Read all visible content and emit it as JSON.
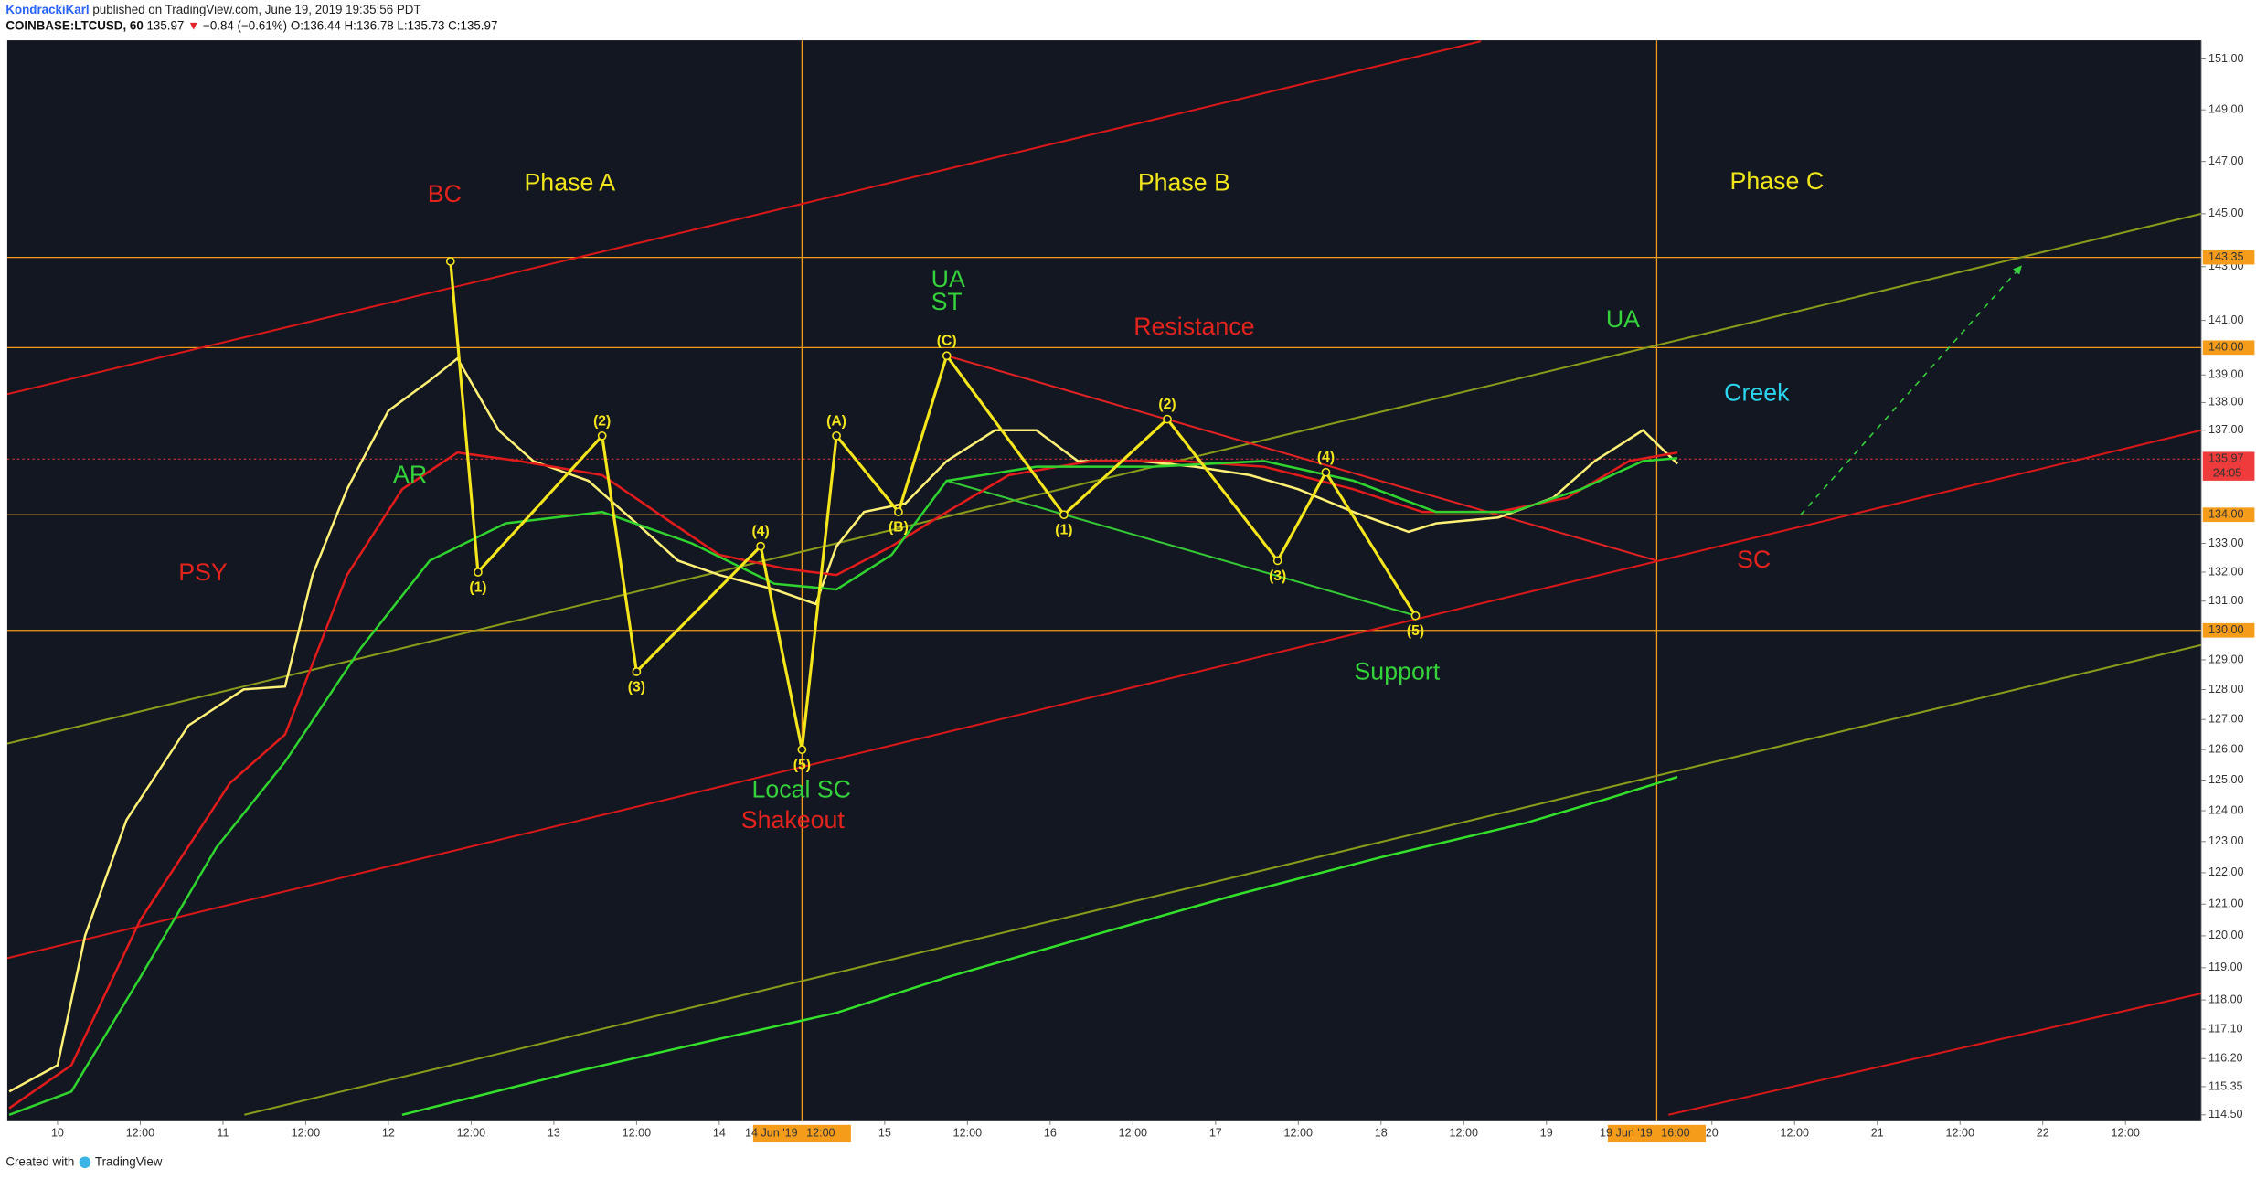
{
  "header": {
    "author": "KondrackiKarl",
    "published": "published on TradingView.com, June 19, 2019 19:35:56 PDT",
    "symbol": "COINBASE:LTCUSD, 60",
    "price": "135.97",
    "arrow": "▼",
    "change": "−0.84 (−0.61%)",
    "ohlc": "O:136.44 H:136.78 L:135.73 C:135.97"
  },
  "footer": {
    "created": "Created with",
    "brand": "TradingView"
  },
  "chart_data": {
    "type": "line",
    "log": true,
    "background": "#131722",
    "xlim": [
      -7.3,
      311
    ],
    "ylim": [
      114.5,
      151
    ],
    "xticks": [
      {
        "value": 0,
        "label": "10"
      },
      {
        "value": 12,
        "label": "12:00"
      },
      {
        "value": 24,
        "label": "11"
      },
      {
        "value": 36,
        "label": "12:00"
      },
      {
        "value": 48,
        "label": "12"
      },
      {
        "value": 60,
        "label": "12:00"
      },
      {
        "value": 72,
        "label": "13"
      },
      {
        "value": 84,
        "label": "12:00"
      },
      {
        "value": 96,
        "label": "14"
      },
      {
        "value": 120,
        "label": "15"
      },
      {
        "value": 132,
        "label": "12:00"
      },
      {
        "value": 144,
        "label": "16"
      },
      {
        "value": 156,
        "label": "12:00"
      },
      {
        "value": 168,
        "label": "17"
      },
      {
        "value": 180,
        "label": "12:00"
      },
      {
        "value": 192,
        "label": "18"
      },
      {
        "value": 204,
        "label": "12:00"
      },
      {
        "value": 216,
        "label": "19"
      },
      {
        "value": 240,
        "label": "20"
      },
      {
        "value": 252,
        "label": "12:00"
      },
      {
        "value": 264,
        "label": "21"
      },
      {
        "value": 276,
        "label": "12:00"
      },
      {
        "value": 288,
        "label": "22"
      },
      {
        "value": 300,
        "label": "12:00"
      }
    ],
    "yticks": [
      {
        "value": 151,
        "label": "151.00"
      },
      {
        "value": 149,
        "label": "149.00"
      },
      {
        "value": 147,
        "label": "147.00"
      },
      {
        "value": 145,
        "label": "145.00"
      },
      {
        "value": 143,
        "label": "143.00"
      },
      {
        "value": 141,
        "label": "141.00"
      },
      {
        "value": 139,
        "label": "139.00"
      },
      {
        "value": 138,
        "label": "138.00"
      },
      {
        "value": 137,
        "label": "137.00"
      },
      {
        "value": 133,
        "label": "133.00"
      },
      {
        "value": 132,
        "label": "132.00"
      },
      {
        "value": 131,
        "label": "131.00"
      },
      {
        "value": 129,
        "label": "129.00"
      },
      {
        "value": 128,
        "label": "128.00"
      },
      {
        "value": 127,
        "label": "127.00"
      },
      {
        "value": 126,
        "label": "126.00"
      },
      {
        "value": 125,
        "label": "125.00"
      },
      {
        "value": 124,
        "label": "124.00"
      },
      {
        "value": 123,
        "label": "123.00"
      },
      {
        "value": 122,
        "label": "122.00"
      },
      {
        "value": 121,
        "label": "121.00"
      },
      {
        "value": 120,
        "label": "120.00"
      },
      {
        "value": 119,
        "label": "119.00"
      },
      {
        "value": 118,
        "label": "118.00"
      },
      {
        "value": 117.1,
        "label": "117.10"
      },
      {
        "value": 116.2,
        "label": "116.20"
      },
      {
        "value": 115.35,
        "label": "115.35"
      },
      {
        "value": 114.5,
        "label": "114.50"
      }
    ],
    "series": [
      {
        "color": "#fff176",
        "x": [
          -7,
          0,
          4,
          10,
          19,
          27,
          33,
          37,
          42,
          48,
          54,
          58,
          64,
          69,
          77,
          84,
          90,
          96,
          104,
          110,
          113,
          117,
          123,
          129,
          136,
          142,
          148,
          157,
          165,
          173,
          180,
          188,
          196,
          200,
          209,
          217,
          223,
          230,
          235
        ],
        "values": [
          115.2,
          116.0,
          120.0,
          123.7,
          126.8,
          128.0,
          128.1,
          131.9,
          134.9,
          137.7,
          138.8,
          139.6,
          137.0,
          135.9,
          135.2,
          133.7,
          132.4,
          131.9,
          131.4,
          130.9,
          132.9,
          134.1,
          134.4,
          135.9,
          137.0,
          137.0,
          135.9,
          135.9,
          135.7,
          135.4,
          134.9,
          134.1,
          133.4,
          133.7,
          133.9,
          134.6,
          135.9,
          137.0,
          135.8
        ]
      },
      {
        "color": "#e21b1b",
        "x": [
          -7,
          2,
          12,
          25,
          33,
          42,
          50,
          58,
          67,
          79,
          88,
          96,
          106,
          113,
          121,
          129,
          138,
          150,
          163,
          175,
          188,
          198,
          209,
          219,
          228,
          235
        ],
        "values": [
          114.7,
          116.0,
          120.5,
          124.9,
          126.5,
          131.9,
          134.9,
          136.2,
          135.9,
          135.4,
          133.9,
          132.6,
          132.1,
          131.9,
          132.9,
          134.1,
          135.4,
          135.9,
          135.9,
          135.7,
          134.9,
          134.1,
          134.1,
          134.6,
          135.9,
          136.2
        ]
      },
      {
        "color": "#2fd42f",
        "x": [
          -7,
          2,
          12,
          23,
          33,
          44,
          54,
          65,
          79,
          92,
          104,
          113,
          121,
          129,
          142,
          159,
          175,
          188,
          200,
          211,
          221,
          230,
          235
        ],
        "values": [
          114.5,
          115.2,
          118.7,
          122.8,
          125.6,
          129.4,
          132.4,
          133.7,
          134.1,
          133.0,
          131.6,
          131.4,
          132.6,
          135.2,
          135.7,
          135.7,
          135.9,
          135.2,
          134.1,
          134.1,
          134.9,
          135.9,
          136.0
        ]
      },
      {
        "color": "#33e02a",
        "x": [
          50,
          75,
          96,
          113,
          129,
          150,
          171,
          192,
          213,
          225,
          235
        ],
        "values": [
          114.5,
          115.8,
          116.8,
          117.6,
          118.7,
          120.0,
          121.3,
          122.5,
          123.6,
          124.4,
          125.1
        ]
      }
    ],
    "waves": {
      "color": "#f5e61c",
      "x": [
        57,
        61,
        79,
        84,
        102,
        108,
        113,
        122,
        129,
        146,
        161,
        177,
        184,
        197
      ],
      "values": [
        143.2,
        132.0,
        136.8,
        128.6,
        132.9,
        126.0,
        136.8,
        134.1,
        139.7,
        134.0,
        137.4,
        132.4,
        135.5,
        130.5
      ],
      "labels": [
        null,
        "(1)",
        "(2)",
        "(3)",
        "(4)",
        "(5)",
        "(A)",
        "(B)",
        "(C)",
        "(1)",
        "(2)",
        "(3)",
        "(4)",
        "(5)"
      ]
    },
    "trendlines": [
      {
        "color": "#d81818",
        "style": "solid",
        "x": [
          -7.3,
          206.5
        ],
        "values": [
          138.3,
          151.7
        ]
      },
      {
        "color": "#d81818",
        "style": "solid",
        "x": [
          -7.3,
          311
        ],
        "values": [
          119.3,
          137.0
        ]
      },
      {
        "color": "#d81818",
        "style": "solid",
        "x": [
          233.7,
          311
        ],
        "values": [
          114.5,
          118.2
        ]
      },
      {
        "color": "#8a9b1a",
        "style": "solid",
        "x": [
          -7.3,
          311
        ],
        "values": [
          126.2,
          145.0
        ]
      },
      {
        "color": "#8a9b1a",
        "style": "solid",
        "x": [
          27.1,
          311
        ],
        "values": [
          114.5,
          129.5
        ]
      },
      {
        "color": "#e02222",
        "style": "solid",
        "x": [
          129,
          232
        ],
        "values": [
          139.7,
          132.4
        ]
      },
      {
        "color": "#35c935",
        "style": "solid",
        "x": [
          129,
          197
        ],
        "values": [
          135.2,
          130.5
        ]
      },
      {
        "color": "#35d33b",
        "style": "dashed",
        "x": [
          252.9,
          284.8
        ],
        "values": [
          134.0,
          143.0
        ]
      }
    ],
    "levels": [
      {
        "value": 143.35,
        "label": "143.35",
        "color": "#f59c1a"
      },
      {
        "value": 140,
        "label": "140.00",
        "color": "#f59c1a"
      },
      {
        "value": 134,
        "label": "134.00",
        "color": "#f59c1a"
      },
      {
        "value": 130,
        "label": "130.00",
        "color": "#f59c1a"
      }
    ],
    "last_price": {
      "value": 135.97,
      "label": "135.97",
      "countdown": "24:05",
      "color": "#ef3b3b"
    },
    "time_markers": [
      {
        "value": 108,
        "date": "14 Jun '19",
        "time": "12:00",
        "color": "#f59c1a"
      },
      {
        "value": 232,
        "date": "19 Jun '19",
        "time": "16:00",
        "color": "#f59c1a"
      }
    ],
    "annotations": [
      {
        "text": "Phase A",
        "color": "#f2e61b"
      },
      {
        "text": "Phase B",
        "color": "#f2e61b"
      },
      {
        "text": "Phase C",
        "color": "#f2e61b"
      },
      {
        "text": "BC",
        "color": "#e3231c"
      },
      {
        "text": "PSY",
        "color": "#e3231c"
      },
      {
        "text": "AR",
        "color": "#35d33b"
      },
      {
        "text": "UA",
        "color": "#35d33b"
      },
      {
        "text": "ST",
        "color": "#35d33b"
      },
      {
        "text": "Resistance",
        "color": "#e3231c"
      },
      {
        "text": "UA",
        "color": "#35d33b"
      },
      {
        "text": "Creek",
        "color": "#2ad4ee"
      },
      {
        "text": "SC",
        "color": "#e3231c"
      },
      {
        "text": "Local SC",
        "color": "#35d33b"
      },
      {
        "text": "Shakeout",
        "color": "#e3231c"
      },
      {
        "text": "Support",
        "color": "#35d33b"
      }
    ]
  }
}
